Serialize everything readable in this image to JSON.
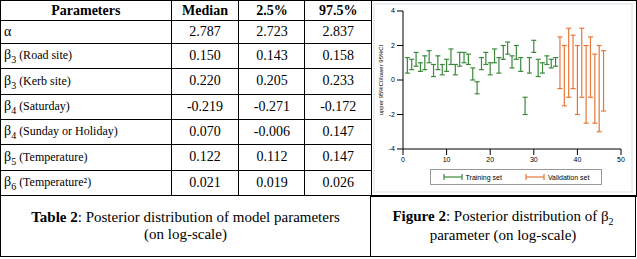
{
  "table": {
    "header": [
      "Parameters",
      "Median",
      "2.5%",
      "97.5%"
    ],
    "rows": [
      {
        "parameter": {
          "symbol": "α",
          "sub": "",
          "label": ""
        },
        "median": "2.787",
        "lower": "2.723",
        "upper": "2.837"
      },
      {
        "parameter": {
          "symbol": "β",
          "sub": "3",
          "label": "(Road site)"
        },
        "median": "0.150",
        "lower": "0.143",
        "upper": "0.158"
      },
      {
        "parameter": {
          "symbol": "β",
          "sub": "3",
          "label": "(Kerb site)"
        },
        "median": "0.220",
        "lower": "0.205",
        "upper": "0.233"
      },
      {
        "parameter": {
          "symbol": "β",
          "sub": "4",
          "label": "(Saturday)"
        },
        "median": "-0.219",
        "lower": "-0.271",
        "upper": "-0.172"
      },
      {
        "parameter": {
          "symbol": "β",
          "sub": "4",
          "label": "(Sunday or Holiday)"
        },
        "median": "0.070",
        "lower": "-0.006",
        "upper": "0.147"
      },
      {
        "parameter": {
          "symbol": "β",
          "sub": "5",
          "label": "(Temperature)"
        },
        "median": "0.122",
        "lower": "0.112",
        "upper": "0.147"
      },
      {
        "parameter": {
          "symbol": "β",
          "sub": "6",
          "label": "(Temperature²)"
        },
        "median": "0.021",
        "lower": "0.019",
        "upper": "0.026"
      }
    ]
  },
  "table_caption": {
    "label": "Table 2",
    "text": ": Posterior distribution of model parameters (on log-scale)"
  },
  "chart_data": {
    "type": "errorbar",
    "ylabel": "upper 95%CI/lower 95%CI",
    "xlim": [
      0,
      50
    ],
    "xticks": [
      0,
      10,
      20,
      30,
      40,
      50
    ],
    "ylim": [
      -4,
      4
    ],
    "yticks": [
      -4,
      -2,
      0,
      2,
      4
    ],
    "grid": false,
    "legend": "bottom",
    "series": [
      {
        "name": "Training set",
        "color": "#3a8a3a",
        "x": [
          1,
          2,
          3,
          4,
          5,
          6,
          7,
          8,
          9,
          10,
          11,
          12,
          13,
          14,
          15,
          16,
          17,
          18,
          19,
          20,
          21,
          22,
          23,
          24,
          25,
          26,
          27,
          28,
          29,
          30,
          31,
          32,
          33,
          34,
          35
        ],
        "lower": [
          0.4,
          0.6,
          0.8,
          0.5,
          0.6,
          1.0,
          0.2,
          0.6,
          0.3,
          0.5,
          0.9,
          0.3,
          0.8,
          1.0,
          0.9,
          0.0,
          -0.8,
          0.6,
          0.9,
          0.3,
          1.0,
          0.4,
          1.2,
          1.5,
          0.7,
          1.2,
          0.5,
          -2.0,
          0.4,
          1.6,
          0.2,
          0.4,
          0.9,
          0.7,
          0.8
        ],
        "upper": [
          1.3,
          1.2,
          1.6,
          1.0,
          1.4,
          1.7,
          0.9,
          1.4,
          0.9,
          1.2,
          1.8,
          0.9,
          1.6,
          1.6,
          1.5,
          0.7,
          -0.1,
          1.3,
          1.6,
          1.0,
          1.8,
          1.3,
          2.0,
          2.2,
          1.4,
          2.0,
          1.3,
          -1.0,
          1.3,
          2.3,
          1.2,
          1.0,
          1.4,
          1.2,
          1.3
        ]
      },
      {
        "name": "Validation set",
        "color": "#e8763a",
        "x": [
          36,
          37,
          38,
          39,
          40,
          41,
          42,
          43,
          44,
          45,
          46
        ],
        "lower": [
          -0.5,
          -1.5,
          -1.0,
          -0.5,
          -2.0,
          -1.0,
          -2.5,
          -1.0,
          -2.5,
          -3.0,
          -1.8
        ],
        "upper": [
          2.5,
          2.0,
          3.0,
          2.6,
          2.0,
          3.0,
          2.0,
          2.5,
          1.5,
          2.0,
          1.7
        ]
      }
    ]
  },
  "figure_caption": {
    "label": "Figure 2",
    "text_before": ": Posterior distribution of ",
    "symbol": "β",
    "sub": "2",
    "text_after": " parameter (on log-scale)"
  }
}
